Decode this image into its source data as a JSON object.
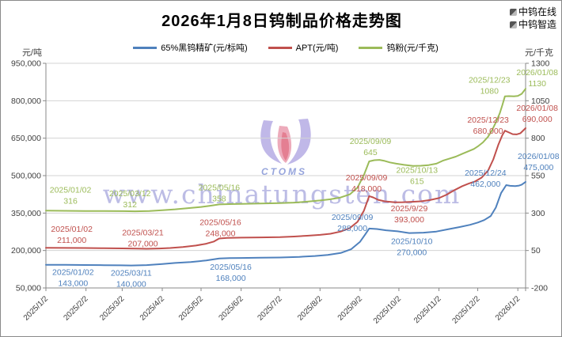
{
  "header": {
    "title": "2026年1月8日钨制品价格走势图",
    "brand": [
      {
        "label": "中钨在线"
      },
      {
        "label": "中钨智造"
      }
    ]
  },
  "axes": {
    "left_unit": "元/吨",
    "right_unit": "元/千克"
  },
  "watermark": {
    "text": "www.chinatungsten.com",
    "logo_text": "CTOMS"
  },
  "chart_data": {
    "type": "line",
    "title": "2026年1月8日钨制品价格走势图",
    "grid": true,
    "legend_position": "top",
    "x_axis": {
      "tick_labels": [
        "2025/1/2",
        "2025/2/2",
        "2025/3/2",
        "2025/4/2",
        "2025/5/2",
        "2025/6/2",
        "2025/7/2",
        "2025/8/2",
        "2025/9/2",
        "2025/10/2",
        "2025/11/2",
        "2025/12/2",
        "2026/1/2"
      ],
      "tick_days": [
        0,
        31,
        59,
        90,
        120,
        151,
        181,
        212,
        243,
        273,
        304,
        334,
        365
      ],
      "total_days": 371,
      "start_date": "2025/1/2",
      "end_date": "2026/1/8"
    },
    "left_axis": {
      "unit": "元/吨",
      "min": 50000,
      "max": 950000,
      "tick_values": [
        950000,
        800000,
        650000,
        500000,
        350000,
        200000,
        50000
      ],
      "tick_labels": [
        "950,000",
        "800,000",
        "650,000",
        "500,000",
        "350,000",
        "200,000",
        "50,000"
      ]
    },
    "right_axis": {
      "unit": "元/千克",
      "min": -200,
      "max": 1300,
      "tick_values": [
        1300,
        1050,
        800,
        550,
        300,
        50,
        -200
      ],
      "tick_labels": [
        "1300",
        "1050",
        "800",
        "550",
        "300",
        "50",
        "-200"
      ]
    },
    "series": [
      {
        "name": "65%黑钨精矿(元/标吨)",
        "axis": "left",
        "color": "#4F81BD",
        "points": [
          [
            0,
            143000
          ],
          [
            15,
            142800
          ],
          [
            30,
            142000
          ],
          [
            45,
            141200
          ],
          [
            58,
            140500
          ],
          [
            66,
            140000
          ],
          [
            78,
            141500
          ],
          [
            90,
            146000
          ],
          [
            100,
            150000
          ],
          [
            112,
            154000
          ],
          [
            124,
            160000
          ],
          [
            134,
            168000
          ],
          [
            142,
            169500
          ],
          [
            151,
            170000
          ],
          [
            166,
            171000
          ],
          [
            181,
            172000
          ],
          [
            196,
            174500
          ],
          [
            208,
            178000
          ],
          [
            218,
            182000
          ],
          [
            228,
            190000
          ],
          [
            236,
            205000
          ],
          [
            243,
            235000
          ],
          [
            247,
            265000
          ],
          [
            250,
            288000
          ],
          [
            256,
            286000
          ],
          [
            263,
            281000
          ],
          [
            272,
            277000
          ],
          [
            281,
            270000
          ],
          [
            292,
            271500
          ],
          [
            302,
            276000
          ],
          [
            312,
            286000
          ],
          [
            320,
            294000
          ],
          [
            328,
            303000
          ],
          [
            334,
            312000
          ],
          [
            339,
            322000
          ],
          [
            344,
            338000
          ],
          [
            348,
            372000
          ],
          [
            352,
            430000
          ],
          [
            356,
            462000
          ],
          [
            359,
            459000
          ],
          [
            363,
            458000
          ],
          [
            366,
            460000
          ],
          [
            368,
            464000
          ],
          [
            371,
            475000
          ]
        ]
      },
      {
        "name": "APT(元/吨)",
        "axis": "left",
        "color": "#C0504D",
        "points": [
          [
            0,
            211000
          ],
          [
            15,
            210500
          ],
          [
            30,
            210000
          ],
          [
            45,
            209000
          ],
          [
            59,
            208500
          ],
          [
            70,
            207500
          ],
          [
            78,
            207000
          ],
          [
            88,
            208000
          ],
          [
            96,
            210000
          ],
          [
            106,
            214000
          ],
          [
            116,
            220000
          ],
          [
            124,
            227000
          ],
          [
            130,
            236000
          ],
          [
            134,
            248000
          ],
          [
            140,
            250500
          ],
          [
            151,
            251500
          ],
          [
            166,
            252500
          ],
          [
            181,
            253500
          ],
          [
            192,
            256000
          ],
          [
            202,
            259000
          ],
          [
            212,
            262500
          ],
          [
            220,
            267000
          ],
          [
            228,
            276000
          ],
          [
            235,
            290000
          ],
          [
            241,
            315000
          ],
          [
            246,
            360000
          ],
          [
            250,
            418000
          ],
          [
            253,
            413000
          ],
          [
            257,
            403000
          ],
          [
            262,
            397000
          ],
          [
            266,
            395000
          ],
          [
            270,
            393000
          ],
          [
            276,
            393500
          ],
          [
            283,
            395000
          ],
          [
            290,
            397000
          ],
          [
            297,
            402000
          ],
          [
            304,
            410000
          ],
          [
            310,
            424000
          ],
          [
            316,
            442000
          ],
          [
            322,
            458000
          ],
          [
            327,
            468000
          ],
          [
            332,
            477000
          ],
          [
            337,
            492000
          ],
          [
            342,
            520000
          ],
          [
            346,
            565000
          ],
          [
            350,
            625000
          ],
          [
            353,
            662000
          ],
          [
            355,
            680000
          ],
          [
            358,
            673000
          ],
          [
            361,
            666000
          ],
          [
            364,
            665000
          ],
          [
            367,
            670000
          ],
          [
            371,
            690000
          ]
        ]
      },
      {
        "name": "钨粉(元/千克)",
        "axis": "right",
        "color": "#9BBB59",
        "points": [
          [
            0,
            316
          ],
          [
            15,
            315
          ],
          [
            30,
            314
          ],
          [
            45,
            313.5
          ],
          [
            60,
            313
          ],
          [
            69,
            312
          ],
          [
            80,
            314
          ],
          [
            90,
            319
          ],
          [
            100,
            325
          ],
          [
            110,
            333
          ],
          [
            120,
            341
          ],
          [
            127,
            349
          ],
          [
            134,
            358
          ],
          [
            142,
            360
          ],
          [
            151,
            361.5
          ],
          [
            166,
            363.5
          ],
          [
            181,
            366
          ],
          [
            192,
            370
          ],
          [
            202,
            376
          ],
          [
            212,
            384
          ],
          [
            220,
            392
          ],
          [
            228,
            404
          ],
          [
            235,
            425
          ],
          [
            241,
            470
          ],
          [
            246,
            555
          ],
          [
            250,
            645
          ],
          [
            254,
            653
          ],
          [
            258,
            655
          ],
          [
            262,
            648
          ],
          [
            266,
            638
          ],
          [
            271,
            630
          ],
          [
            277,
            622
          ],
          [
            284,
            615
          ],
          [
            290,
            616
          ],
          [
            296,
            620
          ],
          [
            302,
            630
          ],
          [
            307,
            650
          ],
          [
            312,
            663
          ],
          [
            317,
            677
          ],
          [
            322,
            696
          ],
          [
            327,
            713
          ],
          [
            331,
            728
          ],
          [
            334,
            745
          ],
          [
            338,
            772
          ],
          [
            342,
            810
          ],
          [
            345,
            852
          ],
          [
            348,
            905
          ],
          [
            351,
            965
          ],
          [
            353,
            1020
          ],
          [
            355,
            1080
          ],
          [
            358,
            1081
          ],
          [
            362,
            1080
          ],
          [
            365,
            1082
          ],
          [
            368,
            1096
          ],
          [
            371,
            1130
          ]
        ]
      }
    ],
    "annotations": [
      {
        "s": 0,
        "d": 21,
        "v": 143000,
        "dy": 4,
        "date": "2025/01/02",
        "value": "143,000"
      },
      {
        "s": 0,
        "d": 66,
        "v": 140000,
        "dy": 4,
        "date": "2025/03/11",
        "value": "140,000"
      },
      {
        "s": 0,
        "d": 143,
        "v": 168000,
        "dy": 5,
        "date": "2025/05/16",
        "value": "168,000"
      },
      {
        "s": 0,
        "d": 237,
        "v": 288000,
        "dy": -20,
        "date": "2025/09/09",
        "value": "288,000"
      },
      {
        "s": 0,
        "d": 283,
        "v": 270000,
        "dy": 5,
        "date": "2025/10/10",
        "value": "270,000"
      },
      {
        "s": 0,
        "d": 340,
        "v": 462000,
        "dy": -21,
        "date": "2025/12/24",
        "value": "462,000"
      },
      {
        "s": 0,
        "d": 381,
        "v": 475000,
        "dy": -38,
        "date": "2026/01/08",
        "value": "475,000"
      },
      {
        "s": 1,
        "d": 20,
        "v": 211000,
        "dy": -29,
        "date": "2025/01/02",
        "value": "211,000"
      },
      {
        "s": 1,
        "d": 75,
        "v": 207000,
        "dy": -26,
        "date": "2025/03/21",
        "value": "207,000"
      },
      {
        "s": 1,
        "d": 135,
        "v": 248000,
        "dy": -26,
        "date": "2025/05/16",
        "value": "248,000"
      },
      {
        "s": 1,
        "d": 248,
        "v": 418000,
        "dy": -29,
        "date": "2025/09/09",
        "value": "418,000"
      },
      {
        "s": 1,
        "d": 281,
        "v": 393000,
        "dy": 2,
        "date": "2025/9/29",
        "value": "393,000"
      },
      {
        "s": 1,
        "d": 342,
        "v": 680000,
        "dy": -19,
        "date": "2025/12/23",
        "value": "680,000"
      },
      {
        "s": 1,
        "d": 380,
        "v": 690000,
        "dy": -31,
        "date": "2026/01/08",
        "value": "690,000"
      },
      {
        "s": 2,
        "d": 19,
        "v": 316,
        "dy": -32,
        "date": "2025/01/02",
        "value": "316"
      },
      {
        "s": 2,
        "d": 65,
        "v": 312,
        "dy": -28,
        "date": "2025/03/12",
        "value": "312"
      },
      {
        "s": 2,
        "d": 134,
        "v": 358,
        "dy": -27,
        "date": "2025/05/16",
        "value": "358"
      },
      {
        "s": 2,
        "d": 251,
        "v": 645,
        "dy": -31,
        "date": "2025/09/09",
        "value": "645"
      },
      {
        "s": 2,
        "d": 287,
        "v": 615,
        "dy": 0,
        "date": "2025/10/13",
        "value": "615"
      },
      {
        "s": 2,
        "d": 343,
        "v": 1080,
        "dy": -26,
        "date": "2025/12/23",
        "value": "1080"
      },
      {
        "s": 2,
        "d": 380,
        "v": 1130,
        "dy": -26,
        "date": "2026/01/08",
        "value": "1130"
      }
    ]
  }
}
